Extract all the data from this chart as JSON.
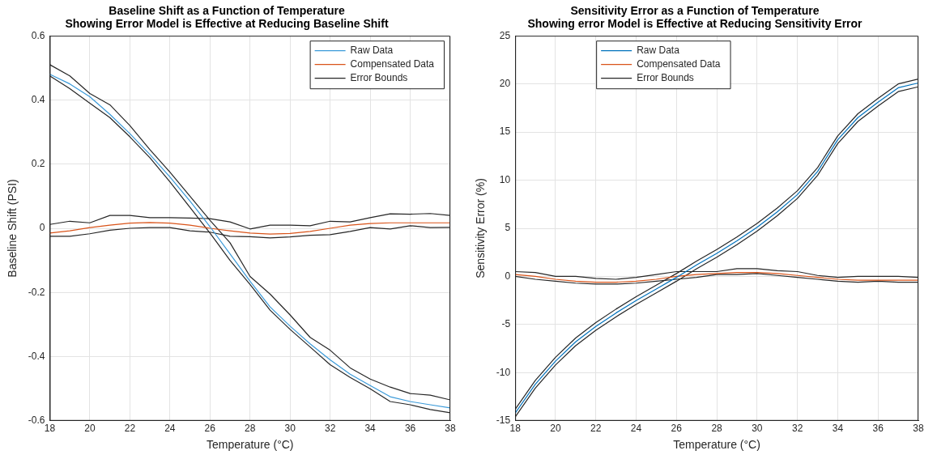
{
  "chart_data": [
    {
      "type": "line",
      "title": "Baseline Shift as a Function of Temperature\nShowing Error Model is Effective at Reducing Baseline Shift",
      "xlabel": "Temperature (°C)",
      "ylabel": "Baseline Shift (PSI)",
      "x": [
        18,
        19,
        20,
        21,
        22,
        23,
        24,
        25,
        26,
        27,
        28,
        29,
        30,
        31,
        32,
        33,
        34,
        35,
        36,
        37,
        38
      ],
      "series": [
        {
          "name": "Raw Data",
          "color": "#3a9ad9",
          "values": [
            0.48,
            0.45,
            0.41,
            0.355,
            0.295,
            0.23,
            0.16,
            0.085,
            0.005,
            -0.08,
            -0.165,
            -0.245,
            -0.305,
            -0.36,
            -0.41,
            -0.455,
            -0.49,
            -0.525,
            -0.54,
            -0.55,
            -0.56
          ]
        },
        {
          "name": "Compensated Data",
          "color": "#d95319",
          "values": [
            -0.015,
            -0.008,
            0.002,
            0.01,
            0.016,
            0.018,
            0.016,
            0.01,
            0.0,
            -0.008,
            -0.015,
            -0.018,
            -0.016,
            -0.01,
            0.0,
            0.01,
            0.015,
            0.017,
            0.017,
            0.017,
            0.017
          ]
        },
        {
          "name": "Error Bounds",
          "color": "#262626",
          "values": [
            0.51,
            0.475,
            0.42,
            0.385,
            0.32,
            0.245,
            0.175,
            0.1,
            0.025,
            -0.045,
            -0.15,
            -0.205,
            -0.27,
            -0.34,
            -0.38,
            -0.435,
            -0.47,
            -0.495,
            -0.515,
            -0.52,
            -0.535
          ]
        },
        {
          "color": "#262626",
          "values": [
            0.475,
            0.435,
            0.39,
            0.345,
            0.285,
            0.22,
            0.145,
            0.065,
            -0.015,
            -0.1,
            -0.175,
            -0.255,
            -0.315,
            -0.37,
            -0.425,
            -0.465,
            -0.5,
            -0.54,
            -0.55,
            -0.565,
            -0.575
          ]
        },
        {
          "color": "#262626",
          "values": [
            0.012,
            0.022,
            0.017,
            0.04,
            0.04,
            0.033,
            0.033,
            0.032,
            0.03,
            0.02,
            -0.002,
            0.01,
            0.01,
            0.008,
            0.022,
            0.02,
            0.033,
            0.045,
            0.044,
            0.046,
            0.04
          ]
        },
        {
          "color": "#262626",
          "values": [
            -0.025,
            -0.025,
            -0.017,
            -0.006,
            0,
            0.002,
            0.002,
            -0.008,
            -0.012,
            -0.025,
            -0.026,
            -0.03,
            -0.027,
            -0.022,
            -0.02,
            -0.01,
            0.002,
            -0.002,
            0.008,
            0.002,
            0.003
          ]
        }
      ],
      "xlim": [
        18,
        38
      ],
      "xticks": [
        18,
        20,
        22,
        24,
        26,
        28,
        30,
        32,
        34,
        36,
        38
      ],
      "ylim": [
        -0.6,
        0.6
      ],
      "yticks": [
        -0.6,
        -0.4,
        -0.2,
        0,
        0.2,
        0.4,
        0.6
      ],
      "grid": true,
      "legend": "top right"
    },
    {
      "type": "line",
      "title": "Sensitivity Error as a Function of Temperature\nShowing error Model is Effective at Reducing Sensitivity Error",
      "xlabel": "Temperature (°C)",
      "ylabel": "Sensitivity Error (%)",
      "x": [
        18,
        19,
        20,
        21,
        22,
        23,
        24,
        25,
        26,
        27,
        28,
        29,
        30,
        31,
        32,
        33,
        34,
        35,
        36,
        37,
        38
      ],
      "series": [
        {
          "name": "Raw Data",
          "color": "#0072bd",
          "values": [
            -14.2,
            -11.2,
            -8.8,
            -6.8,
            -5.2,
            -3.8,
            -2.5,
            -1.3,
            -0.1,
            1.2,
            2.4,
            3.7,
            5.1,
            6.7,
            8.5,
            10.9,
            14.2,
            16.5,
            18.1,
            19.6,
            20.1
          ]
        },
        {
          "name": "Compensated Data",
          "color": "#d95319",
          "values": [
            0.2,
            0.0,
            -0.3,
            -0.5,
            -0.6,
            -0.6,
            -0.5,
            -0.3,
            0.0,
            0.2,
            0.3,
            0.4,
            0.4,
            0.3,
            0.1,
            -0.1,
            -0.3,
            -0.4,
            -0.4,
            -0.4,
            -0.4
          ]
        },
        {
          "name": "Error Bounds",
          "color": "#262626",
          "values": [
            -13.8,
            -10.8,
            -8.4,
            -6.4,
            -4.8,
            -3.4,
            -2.1,
            -0.9,
            0.3,
            1.6,
            2.8,
            4.1,
            5.5,
            7.1,
            8.9,
            11.3,
            14.6,
            16.9,
            18.5,
            20.0,
            20.5
          ]
        },
        {
          "color": "#262626",
          "values": [
            -14.6,
            -11.6,
            -9.2,
            -7.2,
            -5.6,
            -4.2,
            -2.9,
            -1.7,
            -0.5,
            0.8,
            2.0,
            3.3,
            4.7,
            6.3,
            8.1,
            10.5,
            13.8,
            16.1,
            17.7,
            19.2,
            19.7
          ]
        },
        {
          "color": "#262626",
          "values": [
            0.5,
            0.4,
            0.0,
            0.0,
            -0.2,
            -0.3,
            -0.1,
            0.2,
            0.5,
            0.5,
            0.5,
            0.8,
            0.8,
            0.6,
            0.5,
            0.1,
            -0.1,
            0.0,
            0.0,
            0.0,
            -0.1
          ]
        },
        {
          "color": "#262626",
          "values": [
            0.0,
            -0.3,
            -0.5,
            -0.7,
            -0.8,
            -0.8,
            -0.7,
            -0.5,
            -0.3,
            -0.1,
            0.2,
            0.2,
            0.3,
            0.1,
            -0.1,
            -0.3,
            -0.5,
            -0.6,
            -0.5,
            -0.6,
            -0.6
          ]
        }
      ],
      "xlim": [
        18,
        38
      ],
      "xticks": [
        18,
        20,
        22,
        24,
        26,
        28,
        30,
        32,
        34,
        36,
        38
      ],
      "ylim": [
        -15,
        25
      ],
      "yticks": [
        -15,
        -10,
        -5,
        0,
        5,
        10,
        15,
        20,
        25
      ],
      "grid": true,
      "legend": "top left"
    }
  ]
}
